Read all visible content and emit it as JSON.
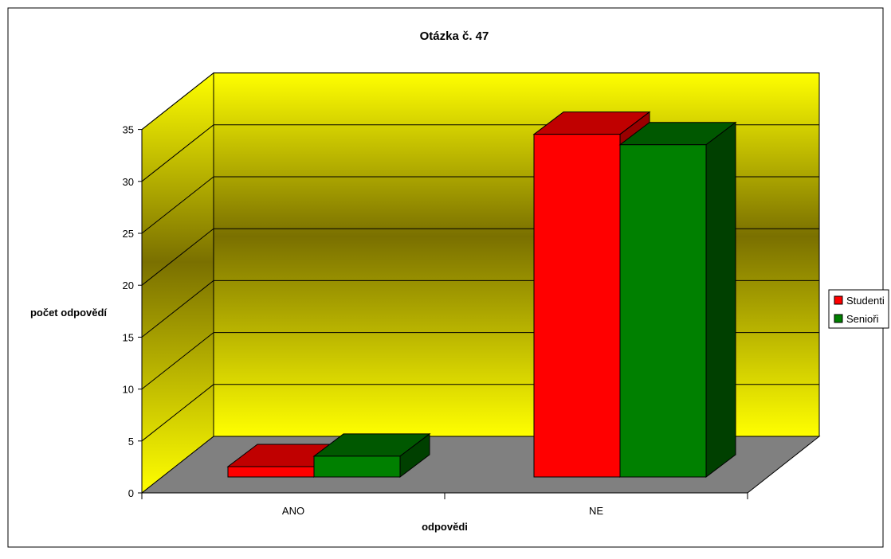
{
  "chart_data": {
    "type": "bar",
    "title": "Otázka č. 47",
    "xlabel": "odpovědi",
    "ylabel": "počet odpovědí",
    "categories": [
      "ANO",
      "NE"
    ],
    "series": [
      {
        "name": "Studenti",
        "values": [
          1,
          33
        ]
      },
      {
        "name": "Senioři",
        "values": [
          2,
          32
        ]
      }
    ],
    "ylim": [
      0,
      35
    ],
    "yticks": [
      "0",
      "5",
      "10",
      "15",
      "20",
      "25",
      "30",
      "35"
    ],
    "grid": true,
    "legend_position": "right",
    "colors": {
      "series": [
        "#ff0000",
        "#008000"
      ],
      "series_top": [
        "#c00000",
        "#005800"
      ],
      "series_side": [
        "#990000",
        "#004000"
      ],
      "wall_edge": "#ffff00",
      "wall_mid": "#7a7000",
      "floor": "#808080"
    }
  }
}
